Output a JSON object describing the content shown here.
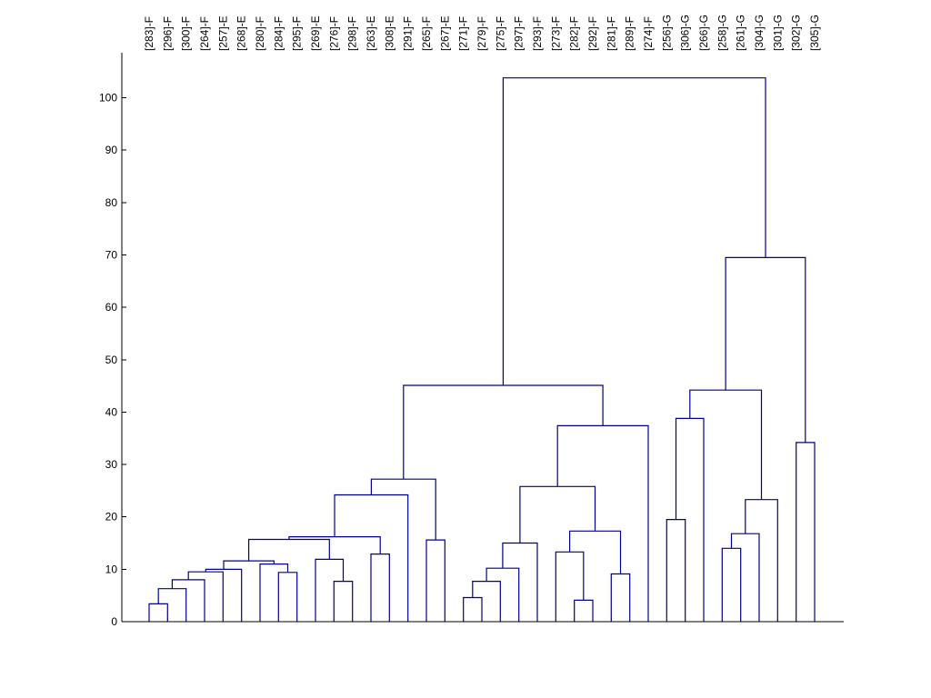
{
  "chart_data": {
    "type": "dendrogram",
    "ylim": [
      0,
      110
    ],
    "y_ticks": [
      0,
      10,
      20,
      30,
      40,
      50,
      60,
      70,
      80,
      90,
      100
    ],
    "y_tick_labels": [
      "0",
      "10",
      "20",
      "30",
      "40",
      "50",
      "60",
      "70",
      "80",
      "90",
      "100"
    ],
    "grid": false,
    "line_color": "#00008b",
    "leaves": [
      "[283]-F",
      "[296]-F",
      "[300]-F",
      "[264]-F",
      "[257]-E",
      "[268]-E",
      "[280]-F",
      "[284]-F",
      "[295]-F",
      "[269]-E",
      "[276]-F",
      "[298]-F",
      "[263]-E",
      "[308]-E",
      "[291]-F",
      "[265]-F",
      "[267]-E",
      "[271]-F",
      "[279]-F",
      "[275]-F",
      "[297]-F",
      "[293]-F",
      "[273]-F",
      "[282]-F",
      "[292]-F",
      "[281]-F",
      "[289]-F",
      "[274]-F",
      "[256]-G",
      "[306]-G",
      "[266]-G",
      "[258]-G",
      "[261]-G",
      "[304]-G",
      "[301]-G",
      "[302]-G",
      "[305]-G"
    ],
    "merges": [
      {
        "left": "[283]-F",
        "right": "[296]-F",
        "height": 3.4
      },
      {
        "left": 0,
        "right": "[300]-F",
        "height": 6.3
      },
      {
        "left": 1,
        "right": "[264]-F",
        "height": 8.0
      },
      {
        "left": 2,
        "right": "[257]-E",
        "height": 9.5
      },
      {
        "left": 3,
        "right": "[268]-E",
        "height": 10.0
      },
      {
        "left": "[284]-F",
        "right": "[295]-F",
        "height": 9.4
      },
      {
        "left": "[280]-F",
        "right": 5,
        "height": 11.0
      },
      {
        "left": 4,
        "right": 6,
        "height": 11.6
      },
      {
        "left": "[276]-F",
        "right": "[298]-F",
        "height": 7.7
      },
      {
        "left": "[269]-E",
        "right": 8,
        "height": 11.9
      },
      {
        "left": "[263]-E",
        "right": "[308]-E",
        "height": 12.9
      },
      {
        "left": 7,
        "right": 9,
        "height": 15.7
      },
      {
        "left": 11,
        "right": 10,
        "height": 16.2
      },
      {
        "left": 12,
        "right": "[291]-F",
        "height": 24.2
      },
      {
        "left": "[265]-F",
        "right": "[267]-E",
        "height": 15.6
      },
      {
        "left": 13,
        "right": 14,
        "height": 27.2
      },
      {
        "left": "[271]-F",
        "right": "[279]-F",
        "height": 4.6
      },
      {
        "left": 16,
        "right": "[275]-F",
        "height": 7.7
      },
      {
        "left": 17,
        "right": "[297]-F",
        "height": 10.2
      },
      {
        "left": 18,
        "right": "[293]-F",
        "height": 15.0
      },
      {
        "left": "[282]-F",
        "right": "[292]-F",
        "height": 4.1
      },
      {
        "left": "[273]-F",
        "right": 20,
        "height": 13.3
      },
      {
        "left": "[281]-F",
        "right": "[289]-F",
        "height": 9.1
      },
      {
        "left": 21,
        "right": 22,
        "height": 17.3
      },
      {
        "left": 19,
        "right": 23,
        "height": 25.8
      },
      {
        "left": 24,
        "right": "[274]-F",
        "height": 37.4
      },
      {
        "left": 15,
        "right": 25,
        "height": 45.1
      },
      {
        "left": "[256]-G",
        "right": "[306]-G",
        "height": 19.5
      },
      {
        "left": 27,
        "right": "[266]-G",
        "height": 38.8
      },
      {
        "left": "[258]-G",
        "right": "[261]-G",
        "height": 14.0
      },
      {
        "left": 29,
        "right": "[304]-G",
        "height": 16.8
      },
      {
        "left": 30,
        "right": "[301]-G",
        "height": 23.3
      },
      {
        "left": 28,
        "right": 31,
        "height": 44.2
      },
      {
        "left": "[302]-G",
        "right": "[305]-G",
        "height": 34.2
      },
      {
        "left": 32,
        "right": 33,
        "height": 69.5
      },
      {
        "left": 26,
        "right": 34,
        "height": 103.8
      }
    ]
  }
}
